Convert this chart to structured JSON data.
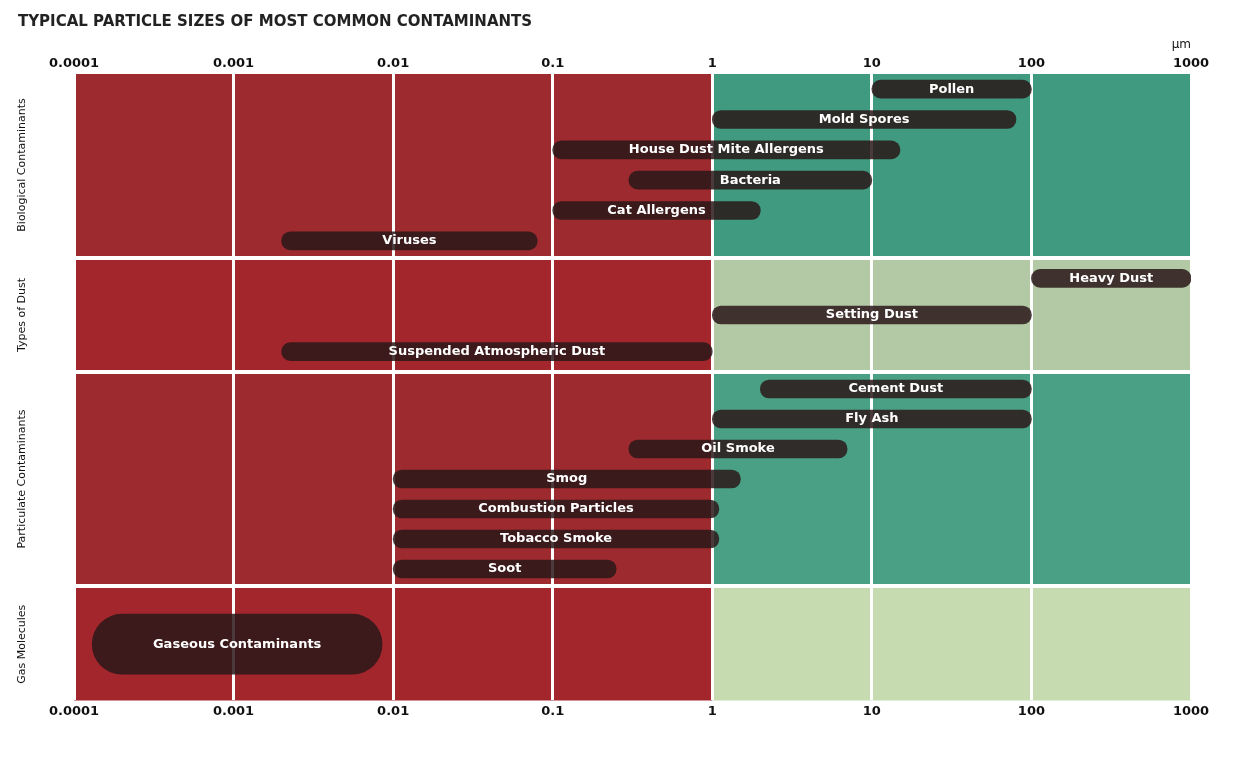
{
  "chart_data": [
    {
      "type": "bar",
      "orientation": "horizontal",
      "title": "TYPICAL PARTICLE SIZES OF MOST COMMON CONTAMINANTS",
      "ylabel": "Biological Contaminants",
      "xlabel": "µm",
      "log": "x",
      "legend": false,
      "grid": "x",
      "tick_labels": "x",
      "color": "#2a1719",
      "categories": [
        "Pollen",
        "Mold Spores",
        "House Dust Mite Allergens",
        "Bacteria",
        "Cat Allergens",
        "Viruses"
      ],
      "base": [
        10,
        1,
        0.1,
        0.3,
        0.1,
        0.002
      ],
      "values": [
        90,
        79,
        14.9,
        9.7,
        1.9,
        0.078
      ],
      "xlim": [
        0.0001,
        1000
      ],
      "xticks": [
        0.0001,
        0.001,
        0.01,
        0.1,
        1,
        10,
        100,
        1000
      ],
      "bands": [
        {
          "axis": "x",
          "from": 0.0001,
          "to": 1,
          "color": "#9c2a2f"
        },
        {
          "axis": "x",
          "from": 1,
          "to": 1000,
          "color": "#3f9a80"
        }
      ]
    },
    {
      "type": "bar",
      "orientation": "horizontal",
      "ylabel": "Types of Dust",
      "log": "x",
      "legend": false,
      "grid": "x",
      "tick_labels": false,
      "color": "#2a1719",
      "categories": [
        "Heavy Dust",
        "Setting Dust",
        "Suspended Atmospheric Dust"
      ],
      "base": [
        100,
        1,
        0.002
      ],
      "values": [
        900,
        99,
        0.998
      ],
      "xlim": [
        0.0001,
        1000
      ],
      "xticks": [
        0.0001,
        0.001,
        0.01,
        0.1,
        1,
        10,
        100,
        1000
      ],
      "bands": [
        {
          "axis": "x",
          "from": 0.0001,
          "to": 1,
          "color": "#a3262c"
        },
        {
          "axis": "x",
          "from": 1,
          "to": 1000,
          "color": "#b3c9a6"
        }
      ]
    },
    {
      "type": "bar",
      "orientation": "horizontal",
      "ylabel": "Particulate Contaminants",
      "log": "x",
      "legend": false,
      "grid": "x",
      "tick_labels": false,
      "color": "#2a1719",
      "categories": [
        "Cement Dust",
        "Fly Ash",
        "Oil Smoke",
        "Smog",
        "Combustion Particles",
        "Tobacco Smoke",
        "Soot"
      ],
      "base": [
        2,
        1,
        0.3,
        0.01,
        0.01,
        0.01,
        0.01
      ],
      "values": [
        98,
        99,
        6.7,
        1.49,
        1.09,
        1.09,
        0.24
      ],
      "xlim": [
        0.0001,
        1000
      ],
      "xticks": [
        0.0001,
        0.001,
        0.01,
        0.1,
        1,
        10,
        100,
        1000
      ],
      "bands": [
        {
          "axis": "x",
          "from": 0.0001,
          "to": 1,
          "color": "#9c2a2f"
        },
        {
          "axis": "x",
          "from": 1,
          "to": 1000,
          "color": "#4aa084"
        }
      ]
    },
    {
      "type": "bar",
      "orientation": "horizontal",
      "ylabel": "Gas Molecules",
      "log": "x",
      "legend": false,
      "grid": "x",
      "tick_labels": "x",
      "color": "#2a1719",
      "categories": [
        "Gaseous Contaminants"
      ],
      "base": [
        0.00013
      ],
      "values": [
        0.0084
      ],
      "xlim": [
        0.0001,
        1000
      ],
      "xticks": [
        0.0001,
        0.001,
        0.01,
        0.1,
        1,
        10,
        100,
        1000
      ],
      "bands": [
        {
          "axis": "x",
          "from": 0.0001,
          "to": 1,
          "color": "#a3262c"
        },
        {
          "axis": "x",
          "from": 1,
          "to": 1000,
          "color": "#c6dcb0"
        }
      ]
    }
  ]
}
